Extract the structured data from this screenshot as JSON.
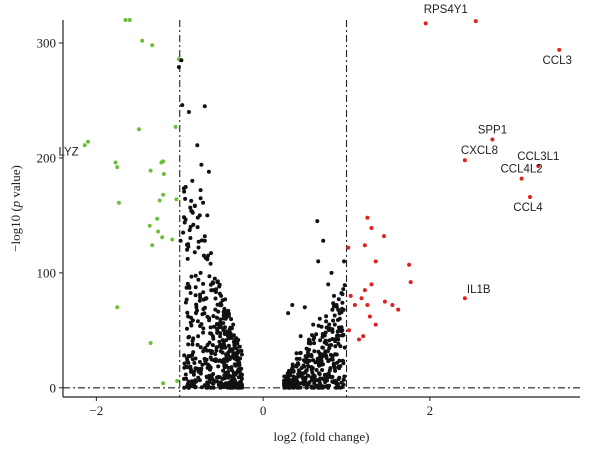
{
  "chart_data": {
    "type": "scatter",
    "title": "",
    "xlabel": "log2 (fold change)",
    "ylabel_prefix": "−log10 (",
    "ylabel_italic": "p",
    "ylabel_suffix": " value)",
    "xlim": [
      -2.4,
      3.8
    ],
    "ylim": [
      -8,
      320
    ],
    "x_ticks": [
      -2,
      0,
      2
    ],
    "y_ticks": [
      0,
      100,
      200,
      300
    ],
    "thresholds": {
      "x": [
        -1,
        1
      ],
      "y": 0
    },
    "grid": false,
    "colors": {
      "down": "#6cbf3a",
      "neutral": "#111111",
      "up": "#e02020"
    },
    "series": [
      {
        "name": "",
        "group": "down",
        "points": [
          [
            -1.6,
            320
          ],
          [
            -1.65,
            320
          ],
          [
            -1.45,
            302
          ],
          [
            -1.33,
            298
          ],
          [
            -1.01,
            286
          ],
          [
            -1.49,
            225
          ],
          [
            -1.05,
            227
          ],
          [
            -2.1,
            214
          ],
          [
            -2.14,
            211
          ],
          [
            -1.77,
            196
          ],
          [
            -1.75,
            192
          ],
          [
            -1.2,
            197
          ],
          [
            -1.22,
            196
          ],
          [
            -1.35,
            189
          ],
          [
            -1.19,
            186
          ],
          [
            -1.73,
            161
          ],
          [
            -1.2,
            168
          ],
          [
            -1.24,
            163
          ],
          [
            -1.04,
            164
          ],
          [
            -1.27,
            147
          ],
          [
            -1.36,
            141
          ],
          [
            -1.26,
            136
          ],
          [
            -1.09,
            129
          ],
          [
            -1.33,
            124
          ],
          [
            -1.21,
            131
          ],
          [
            -1.75,
            70
          ],
          [
            -1.35,
            39
          ],
          [
            -1.2,
            4
          ],
          [
            -1.03,
            6
          ]
        ]
      },
      {
        "name": "",
        "group": "neutral",
        "points": [
          [
            -1.01,
            279
          ],
          [
            -0.98,
            285
          ],
          [
            -0.97,
            246
          ],
          [
            -0.7,
            245
          ],
          [
            -0.89,
            240
          ],
          [
            -0.79,
            211
          ],
          [
            -0.65,
            188
          ],
          [
            -0.74,
            194
          ],
          [
            -0.85,
            180
          ],
          [
            -0.75,
            172
          ],
          [
            -0.72,
            161
          ],
          [
            -0.75,
            165
          ],
          [
            -0.67,
            150
          ],
          [
            -0.76,
            150
          ],
          [
            -0.87,
            140
          ],
          [
            -0.96,
            135
          ],
          [
            -0.99,
            128
          ],
          [
            -0.9,
            125
          ],
          [
            -0.82,
            118
          ],
          [
            -0.7,
            128
          ],
          [
            -0.63,
            108
          ],
          [
            -0.75,
            100
          ],
          [
            -0.55,
            92
          ],
          [
            -0.6,
            85
          ],
          [
            -0.68,
            78
          ],
          [
            -0.8,
            70
          ],
          [
            -0.9,
            62
          ],
          [
            -0.5,
            72
          ],
          [
            -0.45,
            60
          ],
          [
            -0.55,
            55
          ],
          [
            -0.72,
            48
          ],
          [
            -0.42,
            45
          ],
          [
            -0.35,
            40
          ],
          [
            -0.5,
            35
          ],
          [
            -0.62,
            30
          ],
          [
            -0.4,
            25
          ],
          [
            -0.3,
            20
          ],
          [
            -0.48,
            15
          ],
          [
            -0.35,
            8
          ],
          [
            -0.28,
            4
          ],
          [
            -0.58,
            95
          ],
          [
            -0.66,
            115
          ],
          [
            -0.52,
            82
          ],
          [
            -0.38,
            52
          ],
          [
            -0.32,
            30
          ],
          [
            -0.45,
            10
          ],
          [
            -0.27,
            12
          ],
          [
            0.3,
            65
          ],
          [
            0.35,
            72
          ],
          [
            0.5,
            70
          ],
          [
            0.65,
            145
          ],
          [
            0.72,
            128
          ],
          [
            0.78,
            90
          ],
          [
            0.85,
            80
          ],
          [
            0.92,
            60
          ],
          [
            0.88,
            72
          ],
          [
            0.95,
            50
          ],
          [
            0.98,
            35
          ],
          [
            0.6,
            55
          ],
          [
            0.55,
            40
          ],
          [
            0.45,
            45
          ],
          [
            0.4,
            30
          ],
          [
            0.52,
            25
          ],
          [
            0.7,
            20
          ],
          [
            0.8,
            15
          ],
          [
            0.62,
            10
          ],
          [
            0.48,
            8
          ],
          [
            0.35,
            5
          ],
          [
            0.3,
            2
          ],
          [
            0.42,
            12
          ],
          [
            0.58,
            18
          ],
          [
            0.75,
            28
          ],
          [
            0.9,
            42
          ],
          [
            0.68,
            60
          ],
          [
            0.82,
            100
          ],
          [
            0.97,
            110
          ],
          [
            0.66,
            110
          ],
          [
            0.86,
            55
          ]
        ]
      },
      {
        "name": "",
        "group": "up",
        "points": [
          [
            1.95,
            317
          ],
          [
            2.55,
            319
          ],
          [
            3.55,
            294
          ],
          [
            2.75,
            216
          ],
          [
            2.42,
            198
          ],
          [
            3.3,
            193
          ],
          [
            3.1,
            182
          ],
          [
            3.2,
            166
          ],
          [
            1.25,
            148
          ],
          [
            1.3,
            139
          ],
          [
            1.45,
            132
          ],
          [
            1.22,
            124
          ],
          [
            1.35,
            110
          ],
          [
            1.02,
            122
          ],
          [
            1.75,
            107
          ],
          [
            1.77,
            92
          ],
          [
            1.3,
            90
          ],
          [
            1.22,
            85
          ],
          [
            1.18,
            78
          ],
          [
            1.1,
            72
          ],
          [
            1.05,
            80
          ],
          [
            1.25,
            72
          ],
          [
            1.46,
            75
          ],
          [
            1.55,
            72
          ],
          [
            1.62,
            68
          ],
          [
            1.28,
            62
          ],
          [
            1.35,
            55
          ],
          [
            1.2,
            45
          ],
          [
            1.15,
            42
          ],
          [
            1.03,
            50
          ],
          [
            2.42,
            78
          ]
        ]
      }
    ],
    "annotations": [
      {
        "text": "RPS4Y1",
        "x": 2.55,
        "y": 319,
        "anchor": "above-left"
      },
      {
        "text": "CCL3",
        "x": 3.55,
        "y": 294,
        "anchor": "below-left"
      },
      {
        "text": "SPP1",
        "x": 2.75,
        "y": 216,
        "anchor": "above"
      },
      {
        "text": "CXCL8",
        "x": 2.42,
        "y": 198,
        "anchor": "above-right"
      },
      {
        "text": "CCL3L1",
        "x": 3.3,
        "y": 193,
        "anchor": "above"
      },
      {
        "text": "CCL4L2",
        "x": 3.1,
        "y": 182,
        "anchor": "above"
      },
      {
        "text": "CCL4",
        "x": 3.2,
        "y": 166,
        "anchor": "below-left"
      },
      {
        "text": "IL1B",
        "x": 2.42,
        "y": 78,
        "anchor": "right-above"
      },
      {
        "text": "LYZ",
        "x": -2.14,
        "y": 211,
        "anchor": "left"
      }
    ]
  }
}
